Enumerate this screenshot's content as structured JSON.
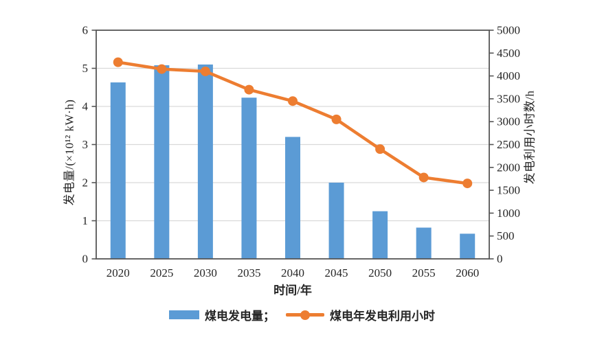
{
  "chart_data": {
    "type": "combo",
    "categories": [
      "2020",
      "2025",
      "2030",
      "2035",
      "2040",
      "2045",
      "2050",
      "2055",
      "2060"
    ],
    "series": [
      {
        "name": "煤电发电量",
        "kind": "bar",
        "axis": "left",
        "values": [
          4.63,
          5.08,
          5.1,
          4.23,
          3.2,
          2.0,
          1.25,
          0.82,
          0.66
        ]
      },
      {
        "name": "煤电年发电利用小时",
        "kind": "line",
        "axis": "right",
        "values": [
          4300,
          4150,
          4100,
          3700,
          3450,
          3050,
          2400,
          1780,
          1650
        ]
      }
    ],
    "title": "",
    "xlabel": "时间/年",
    "ylabel_left": "发电量/(×10¹² kW·h)",
    "ylabel_right": "发电利用小时数/h",
    "ylim_left": [
      0,
      6
    ],
    "ylim_right": [
      0,
      5000
    ],
    "yticks_left": [
      0,
      1,
      2,
      3,
      4,
      5,
      6
    ],
    "yticks_right": [
      0,
      500,
      1000,
      1500,
      2000,
      2500,
      3000,
      3500,
      4000,
      4500,
      5000
    ],
    "grid": "horizontal-major-left",
    "legend_position": "bottom",
    "colors": {
      "bar": "#5B9BD5",
      "line": "#ED7D31",
      "grid": "#D9D9D9",
      "axis": "#555555",
      "text": "#262626",
      "background": "#FFFFFF"
    }
  },
  "legend": {
    "bar_label": "煤电发电量；",
    "line_label": "煤电年发电利用小时"
  }
}
